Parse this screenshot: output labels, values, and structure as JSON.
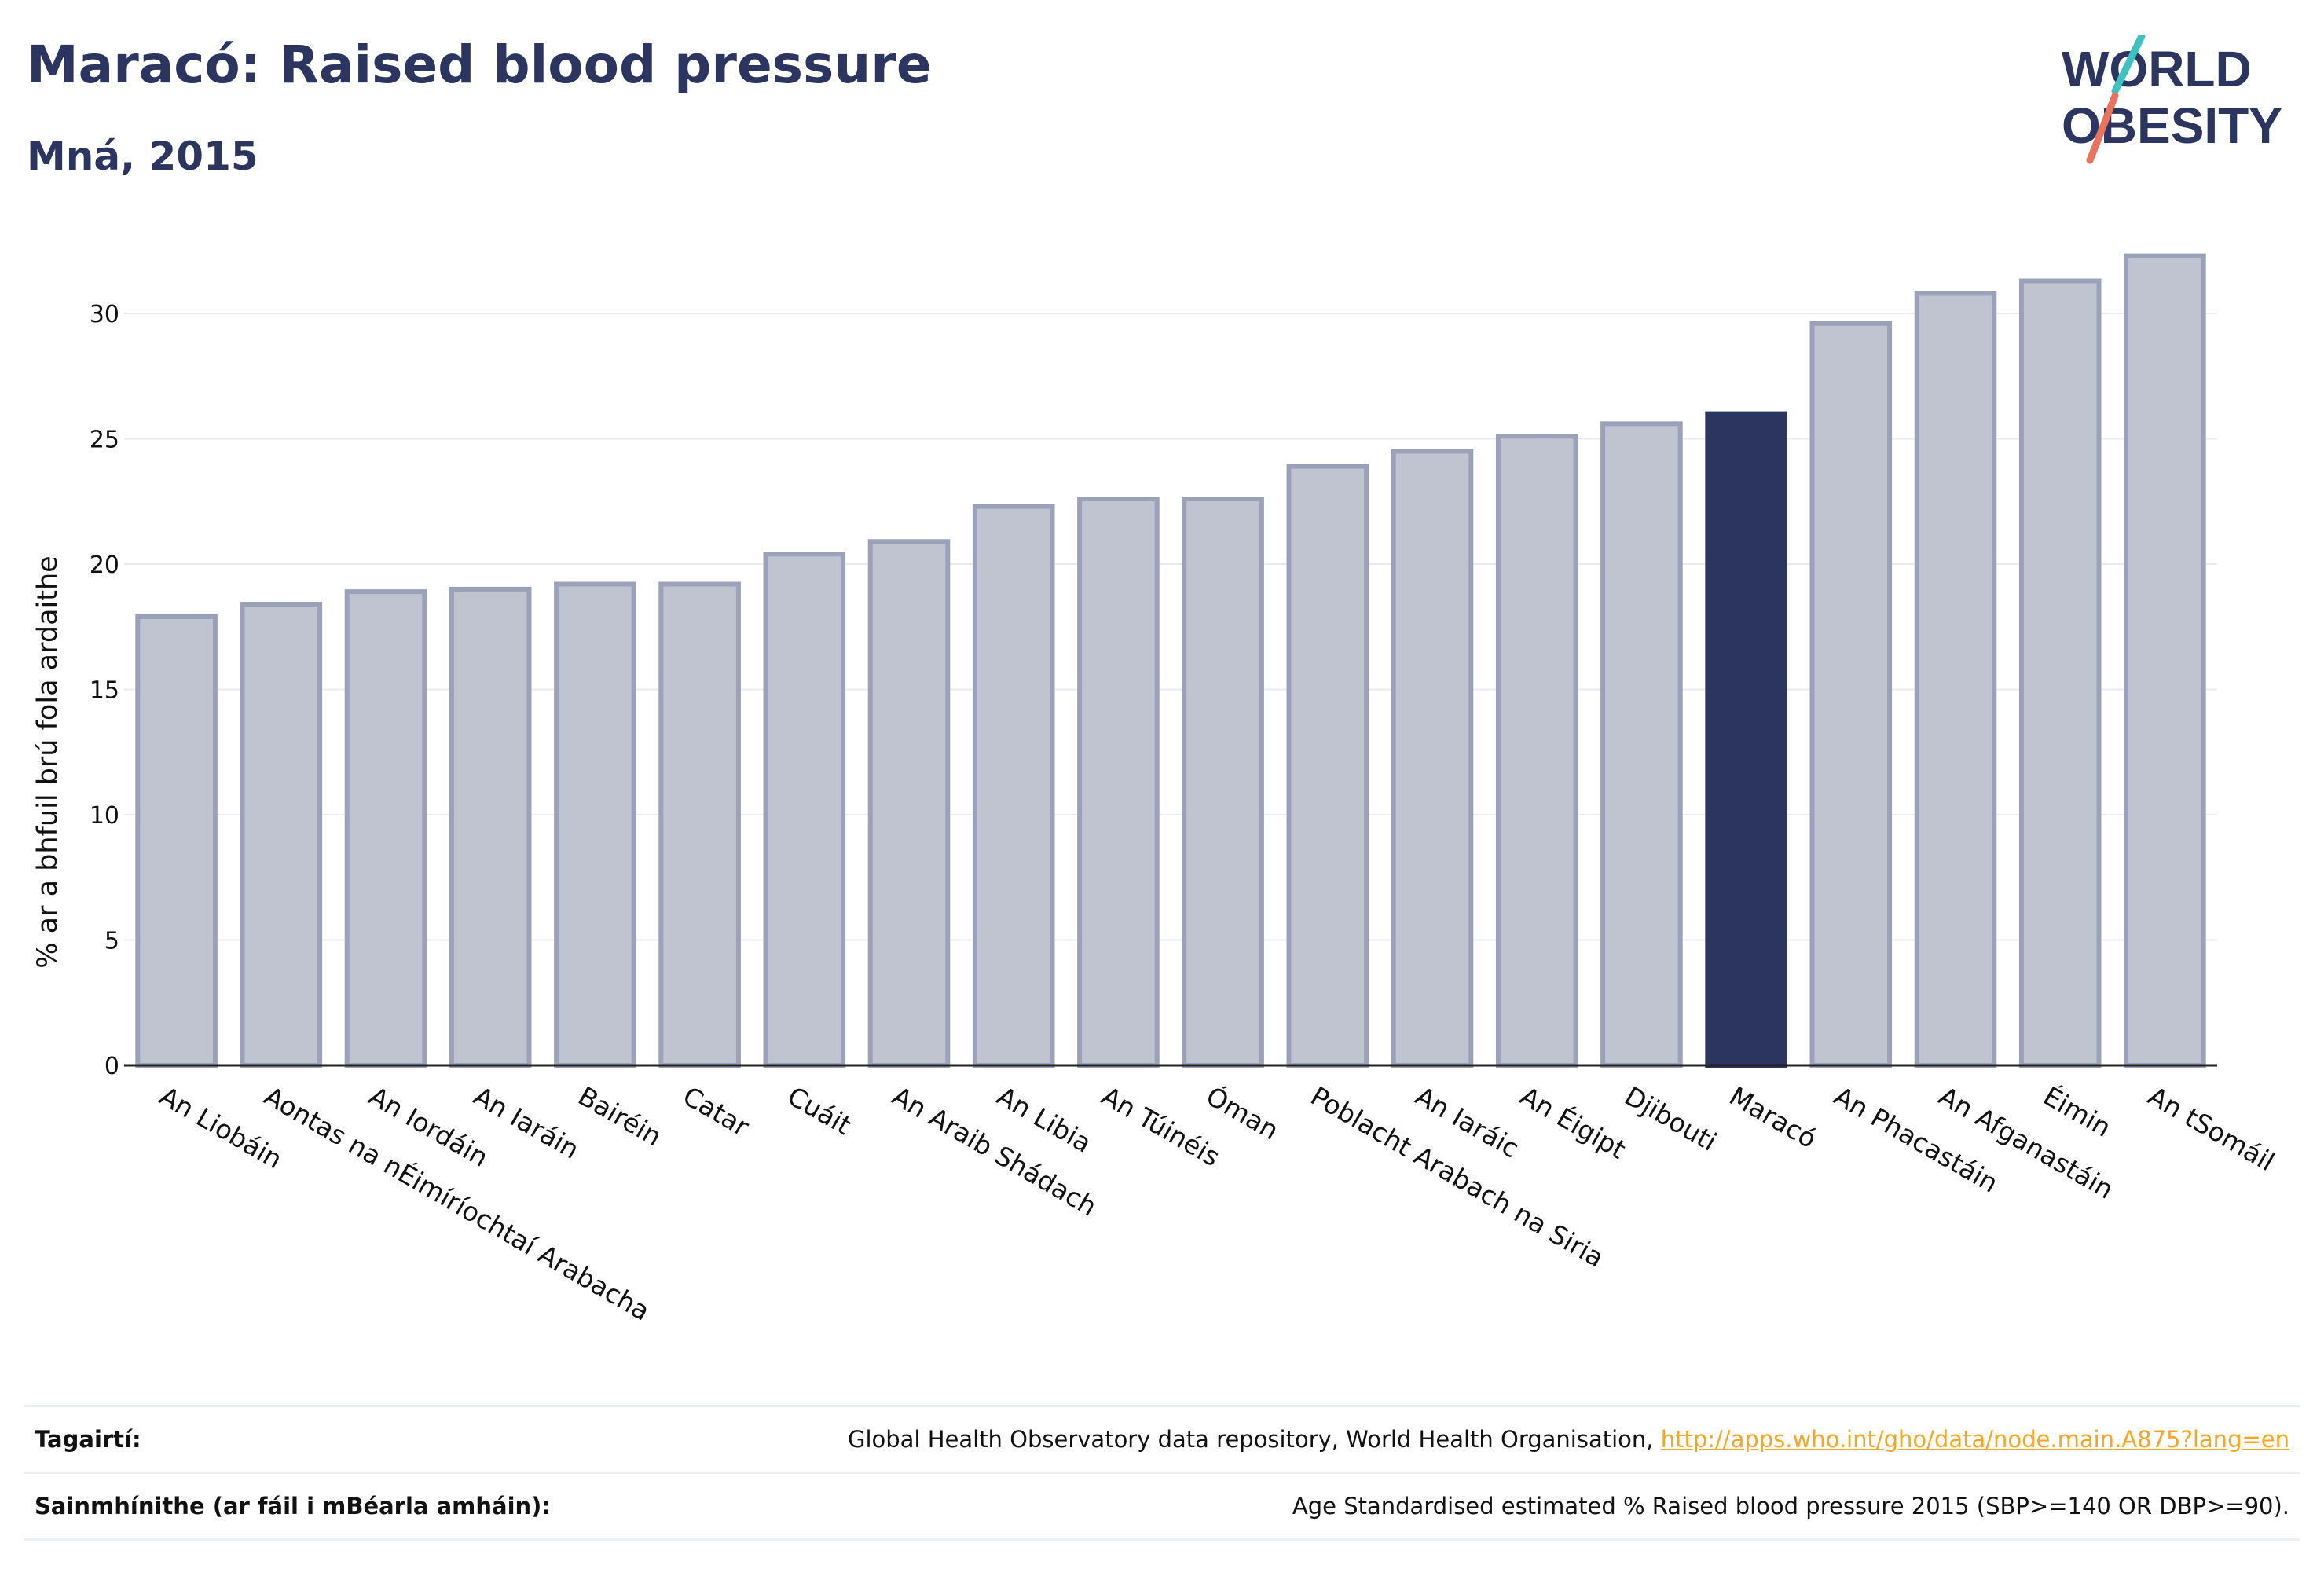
{
  "header": {
    "title": "Maracó: Raised blood pressure",
    "subtitle": "Mná, 2015"
  },
  "logo": {
    "line1": "WORLD",
    "line2": "OBESITY"
  },
  "chart_data": {
    "type": "bar",
    "ylabel": "% ar a bhfuil brú fola ardaithe",
    "ylim": [
      0,
      32.5
    ],
    "yticks": [
      0,
      5,
      10,
      15,
      20,
      25,
      30
    ],
    "grid": true,
    "categories": [
      "An Liobáin",
      "Aontas na nÉimíríochtaí Arabacha",
      "An Iordáin",
      "An Iaráin",
      "Bairéin",
      "Catar",
      "Cuáit",
      "An Araib Shádach",
      "An Libia",
      "An Túinéis",
      "Óman",
      "Poblacht Arabach na Siria",
      "An Iaráic",
      "An Éigipt",
      "Djibouti",
      "Maracó",
      "An Phacastáin",
      "An Afganastáin",
      "Éimin",
      "An tSomáil"
    ],
    "values": [
      17.9,
      18.4,
      18.9,
      19.0,
      19.2,
      19.2,
      20.4,
      20.9,
      22.3,
      22.6,
      22.6,
      23.9,
      24.5,
      25.1,
      25.6,
      26.0,
      29.6,
      30.8,
      31.3,
      32.3
    ],
    "highlight": "Maracó",
    "colors": {
      "bar": "#c0c4d0",
      "bar_border": "#9ba1b8",
      "highlight": "#2b3560"
    }
  },
  "footer": {
    "references_label": "Tagairtí:",
    "references_text": "Global Health Observatory data repository, World Health Organisation, ",
    "references_link": "http://apps.who.int/gho/data/node.main.A875?lang=en",
    "definitions_label": "Sainmhínithe (ar fáil i mBéarla amháin):",
    "definitions_text": "Age Standardised estimated % Raised blood pressure 2015 (SBP>=140 OR DBP>=90)."
  }
}
